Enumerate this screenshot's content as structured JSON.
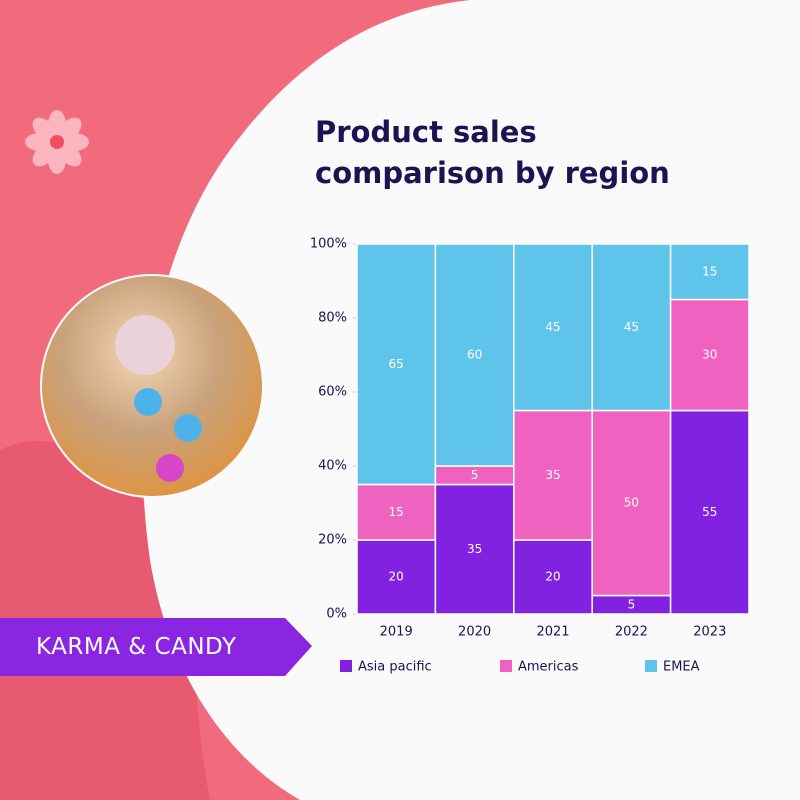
{
  "brand": "KARMA & CANDY",
  "chart_data": {
    "type": "stacked_bar",
    "title": "Product sales comparison by region",
    "categories": [
      "2019",
      "2020",
      "2021",
      "2022",
      "2023"
    ],
    "series": [
      {
        "name": "Asia pacific",
        "color": "#8122e0",
        "values": [
          20,
          35,
          20,
          5,
          55
        ]
      },
      {
        "name": "Americas",
        "color": "#f062c0",
        "values": [
          15,
          5,
          35,
          50,
          30
        ]
      },
      {
        "name": "EMEA",
        "color": "#5ec4ea",
        "values": [
          65,
          60,
          45,
          45,
          15
        ]
      }
    ],
    "ylim": [
      0,
      100
    ],
    "yticks": [
      {
        "value": 0,
        "label": "0%"
      },
      {
        "value": 20,
        "label": "20%"
      },
      {
        "value": 40,
        "label": "40%"
      },
      {
        "value": 60,
        "label": "60%"
      },
      {
        "value": 80,
        "label": "80%"
      },
      {
        "value": 100,
        "label": "100%"
      }
    ],
    "legend": "bottom"
  }
}
